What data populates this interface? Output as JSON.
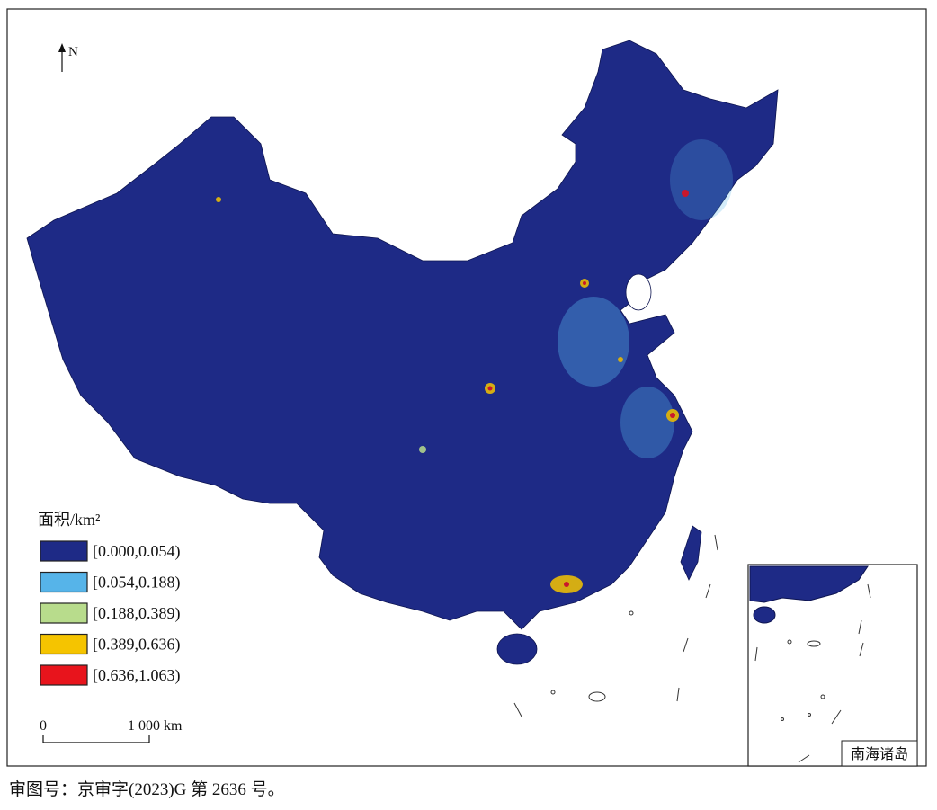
{
  "north": "N",
  "legend": {
    "title": "面积/km²",
    "items": [
      {
        "label": "[0.000,0.054)",
        "color": "#1e2a86"
      },
      {
        "label": "[0.054,0.188)",
        "color": "#56b4e9"
      },
      {
        "label": "[0.188,0.389)",
        "color": "#b8dc8c"
      },
      {
        "label": "[0.389,0.636)",
        "color": "#f5c400"
      },
      {
        "label": "[0.636,1.063)",
        "color": "#e8141c"
      }
    ]
  },
  "scale_bar": {
    "start": "0",
    "end": "1 000 km"
  },
  "inset": {
    "label": "南海诸岛"
  },
  "caption": "审图号：京审字(2023)G 第 2636 号。"
}
